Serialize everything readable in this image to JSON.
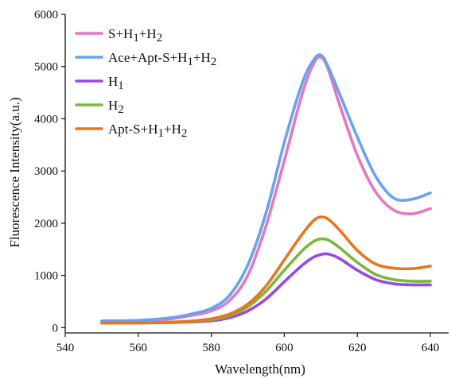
{
  "chart_data": {
    "type": "line",
    "xlabel": "Wavelength(nm)",
    "ylabel": "Fluorescence Intensity(a.u.)",
    "xlim": [
      540,
      645
    ],
    "ylim": [
      -100,
      6000
    ],
    "xticks": [
      540,
      560,
      580,
      600,
      620,
      640
    ],
    "yticks": [
      0,
      1000,
      2000,
      3000,
      4000,
      5000,
      6000
    ],
    "grid": false,
    "legend_position": "top-left",
    "x": [
      550,
      560,
      570,
      575,
      580,
      585,
      590,
      595,
      600,
      605,
      608,
      610,
      612,
      615,
      620,
      625,
      630,
      635,
      640
    ],
    "series": [
      {
        "name": "S+H1+H2",
        "name_parts": [
          [
            "S+H",
            ""
          ],
          [
            "1",
            "sub"
          ],
          [
            "+H",
            ""
          ],
          [
            "2",
            "sub"
          ]
        ],
        "color": "#e478c2",
        "values": [
          90,
          110,
          180,
          240,
          320,
          520,
          1000,
          1950,
          3200,
          4500,
          5050,
          5180,
          4950,
          4300,
          3300,
          2600,
          2250,
          2180,
          2280
        ]
      },
      {
        "name": "Ace+Apt-S+H1+H2",
        "name_parts": [
          [
            "Ace+Apt-S+H",
            ""
          ],
          [
            "1",
            "sub"
          ],
          [
            "+H",
            ""
          ],
          [
            "2",
            "sub"
          ]
        ],
        "color": "#6aa2ee",
        "values": [
          130,
          140,
          200,
          270,
          370,
          620,
          1200,
          2200,
          3550,
          4700,
          5120,
          5220,
          5000,
          4500,
          3650,
          2900,
          2480,
          2460,
          2580
        ]
      },
      {
        "name": "H1",
        "name_parts": [
          [
            "H",
            ""
          ],
          [
            "1",
            "sub"
          ]
        ],
        "color": "#9b47e6",
        "values": [
          90,
          90,
          100,
          110,
          130,
          190,
          320,
          550,
          880,
          1200,
          1350,
          1400,
          1410,
          1330,
          1100,
          920,
          840,
          820,
          820
        ]
      },
      {
        "name": "H2",
        "name_parts": [
          [
            "H",
            ""
          ],
          [
            "2",
            "sub"
          ]
        ],
        "color": "#7ab83a",
        "values": [
          90,
          90,
          100,
          120,
          150,
          230,
          400,
          700,
          1100,
          1480,
          1650,
          1700,
          1680,
          1540,
          1250,
          1020,
          920,
          890,
          890
        ]
      },
      {
        "name": "Apt-S+H1+H2",
        "name_parts": [
          [
            "Apt-S+H",
            ""
          ],
          [
            "1",
            "sub"
          ],
          [
            "+H",
            ""
          ],
          [
            "2",
            "sub"
          ]
        ],
        "color": "#e8751f",
        "values": [
          90,
          90,
          110,
          130,
          170,
          260,
          450,
          800,
          1300,
          1800,
          2050,
          2120,
          2080,
          1880,
          1480,
          1220,
          1140,
          1130,
          1180
        ]
      }
    ]
  }
}
